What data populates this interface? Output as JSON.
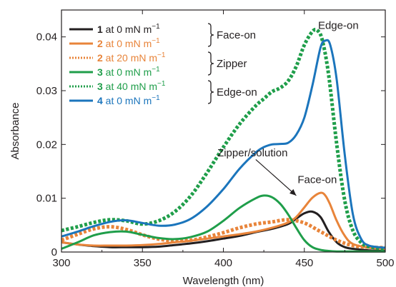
{
  "chart_data": {
    "type": "line",
    "xlabel": "Wavelength (nm)",
    "ylabel": "Absorbance",
    "xlim": [
      300,
      500
    ],
    "ylim": [
      0,
      0.045
    ],
    "xticks": [
      300,
      350,
      400,
      450,
      500
    ],
    "yticks": [
      0,
      0.01,
      0.02,
      0.03,
      0.04
    ],
    "xtick_labels": [
      "300",
      "350",
      "400",
      "450",
      "500"
    ],
    "ytick_labels": [
      "0",
      "0.01",
      "0.02",
      "0.03",
      "0.04"
    ],
    "grid": false,
    "legend_position": "top-left",
    "legend": [
      {
        "id": "1",
        "label": " at 0 mN m",
        "sup": "−1",
        "color": "#231f20",
        "style": "solid"
      },
      {
        "id": "2",
        "label": " at 0 mN m",
        "sup": "−1",
        "color": "#e8843a",
        "style": "solid"
      },
      {
        "id": "2",
        "label": " at 20 mN m",
        "sup": "−1",
        "color": "#e8843a",
        "style": "dotted"
      },
      {
        "id": "3",
        "label": " at 0 mN m",
        "sup": "−1",
        "color": "#1f9e4a",
        "style": "solid"
      },
      {
        "id": "3",
        "label": " at 40 mN m",
        "sup": "−1",
        "color": "#1f9e4a",
        "style": "dotted"
      },
      {
        "id": "4",
        "label": " at 0 mN m",
        "sup": "−1",
        "color": "#1b75bc",
        "style": "solid"
      }
    ],
    "brace_labels": [
      "Face-on",
      "Zipper",
      "Edge-on"
    ],
    "annotations": [
      {
        "text": "Edge-on",
        "x": 471,
        "y": 0.0415
      },
      {
        "text": "Face-on",
        "x": 458,
        "y": 0.0128
      },
      {
        "text": "Zipper/solution",
        "x": 418,
        "y": 0.0178
      }
    ],
    "arrow": {
      "from": [
        420,
        0.0172
      ],
      "to": [
        445,
        0.0105
      ]
    },
    "series": [
      {
        "name": "1 at 0 mN m−1",
        "color": "#231f20",
        "style": "solid",
        "x": [
          300,
          310,
          320,
          330,
          340,
          350,
          360,
          370,
          380,
          390,
          400,
          410,
          420,
          430,
          440,
          445,
          450,
          455,
          460,
          465,
          470,
          475,
          480,
          490,
          500
        ],
        "y": [
          0.0018,
          0.0014,
          0.0011,
          0.0009,
          0.0009,
          0.0009,
          0.001,
          0.0013,
          0.0016,
          0.002,
          0.0025,
          0.003,
          0.0037,
          0.0043,
          0.0052,
          0.0062,
          0.0072,
          0.0075,
          0.0065,
          0.0038,
          0.0018,
          0.0009,
          0.0006,
          0.0003,
          0.0002
        ]
      },
      {
        "name": "2 at 0 mN m−1",
        "color": "#e8843a",
        "style": "solid",
        "x": [
          300,
          310,
          320,
          330,
          340,
          350,
          360,
          370,
          380,
          390,
          400,
          410,
          420,
          430,
          440,
          445,
          450,
          455,
          460,
          463,
          466,
          470,
          475,
          480,
          490,
          500
        ],
        "y": [
          0.0018,
          0.0014,
          0.0012,
          0.0012,
          0.0012,
          0.0013,
          0.0015,
          0.0018,
          0.0021,
          0.0025,
          0.0029,
          0.0033,
          0.0038,
          0.0045,
          0.0055,
          0.0065,
          0.0083,
          0.0101,
          0.011,
          0.0105,
          0.0088,
          0.0058,
          0.003,
          0.0015,
          0.0008,
          0.0006
        ]
      },
      {
        "name": "2 at 20 mN m−1",
        "color": "#e8843a",
        "style": "dotted",
        "x": [
          300,
          310,
          320,
          330,
          340,
          350,
          360,
          370,
          380,
          390,
          400,
          410,
          420,
          430,
          440,
          450,
          460,
          470,
          480,
          490,
          500
        ],
        "y": [
          0.0022,
          0.0033,
          0.0043,
          0.0047,
          0.0042,
          0.0032,
          0.0024,
          0.0021,
          0.0022,
          0.0028,
          0.0036,
          0.0045,
          0.0052,
          0.0056,
          0.006,
          0.0054,
          0.0038,
          0.0022,
          0.0012,
          0.0009,
          0.0008
        ]
      },
      {
        "name": "3 at 0 mN m−1",
        "color": "#1f9e4a",
        "style": "solid",
        "x": [
          300,
          310,
          320,
          330,
          340,
          350,
          360,
          370,
          380,
          390,
          400,
          410,
          420,
          425,
          430,
          435,
          440,
          445,
          450,
          455,
          460,
          465,
          470,
          480,
          490,
          500
        ],
        "y": [
          0.0006,
          0.0018,
          0.0031,
          0.0037,
          0.0038,
          0.0032,
          0.0026,
          0.0024,
          0.0028,
          0.0038,
          0.0058,
          0.0082,
          0.01,
          0.0105,
          0.0102,
          0.009,
          0.007,
          0.0045,
          0.0022,
          0.0009,
          0.0004,
          0.0002,
          0.0001,
          0.0001,
          0.0001,
          0.0001
        ]
      },
      {
        "name": "3 at 40 mN m−1",
        "color": "#1f9e4a",
        "style": "dotted",
        "x": [
          300,
          310,
          320,
          330,
          340,
          350,
          360,
          370,
          380,
          390,
          400,
          410,
          420,
          425,
          430,
          435,
          440,
          445,
          450,
          455,
          458,
          461,
          465,
          470,
          475,
          480,
          485,
          490,
          500
        ],
        "y": [
          0.004,
          0.0047,
          0.0055,
          0.006,
          0.0058,
          0.0052,
          0.0058,
          0.0075,
          0.0105,
          0.0148,
          0.0195,
          0.0238,
          0.0272,
          0.0285,
          0.0298,
          0.0305,
          0.0318,
          0.0345,
          0.0385,
          0.041,
          0.0412,
          0.0395,
          0.033,
          0.02,
          0.0095,
          0.004,
          0.0018,
          0.001,
          0.0006
        ]
      },
      {
        "name": "4 at 0 mN m−1",
        "color": "#1b75bc",
        "style": "solid",
        "x": [
          300,
          310,
          320,
          330,
          340,
          350,
          360,
          370,
          380,
          390,
          400,
          410,
          420,
          425,
          430,
          435,
          440,
          445,
          450,
          455,
          460,
          463,
          466,
          470,
          475,
          480,
          485,
          490,
          500
        ],
        "y": [
          0.0029,
          0.0038,
          0.0048,
          0.0056,
          0.0059,
          0.0054,
          0.0049,
          0.0051,
          0.0062,
          0.0085,
          0.0117,
          0.0155,
          0.0185,
          0.0195,
          0.02,
          0.0201,
          0.0203,
          0.0218,
          0.025,
          0.031,
          0.038,
          0.0393,
          0.0385,
          0.032,
          0.018,
          0.007,
          0.0025,
          0.0012,
          0.0008
        ]
      }
    ]
  }
}
